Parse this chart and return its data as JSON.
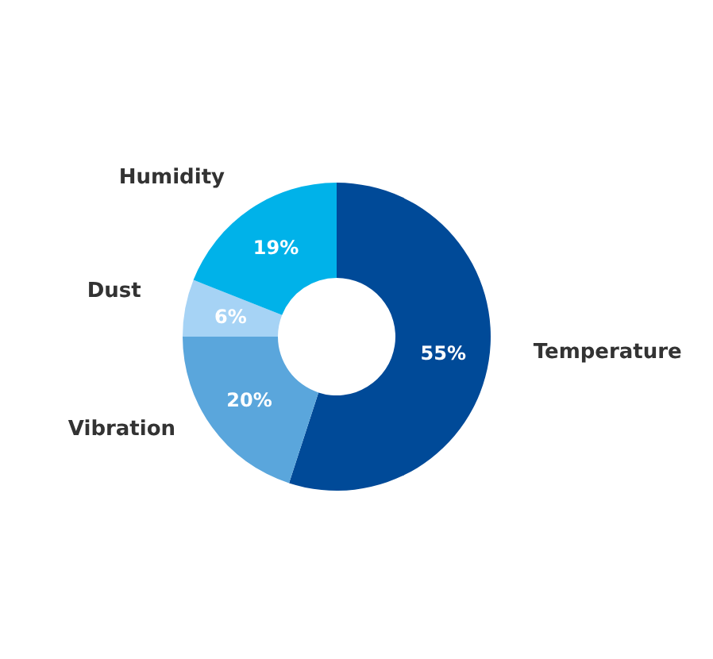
{
  "chart_data": {
    "type": "donut",
    "categories": [
      "Temperature",
      "Vibration",
      "Dust",
      "Humidity"
    ],
    "values": [
      55,
      20,
      6,
      19
    ],
    "colors": [
      "#004a98",
      "#5aa6dc",
      "#a6d3f5",
      "#00b2e9"
    ],
    "value_labels": [
      "55%",
      "20%",
      "6%",
      "19%"
    ],
    "legend": false
  }
}
